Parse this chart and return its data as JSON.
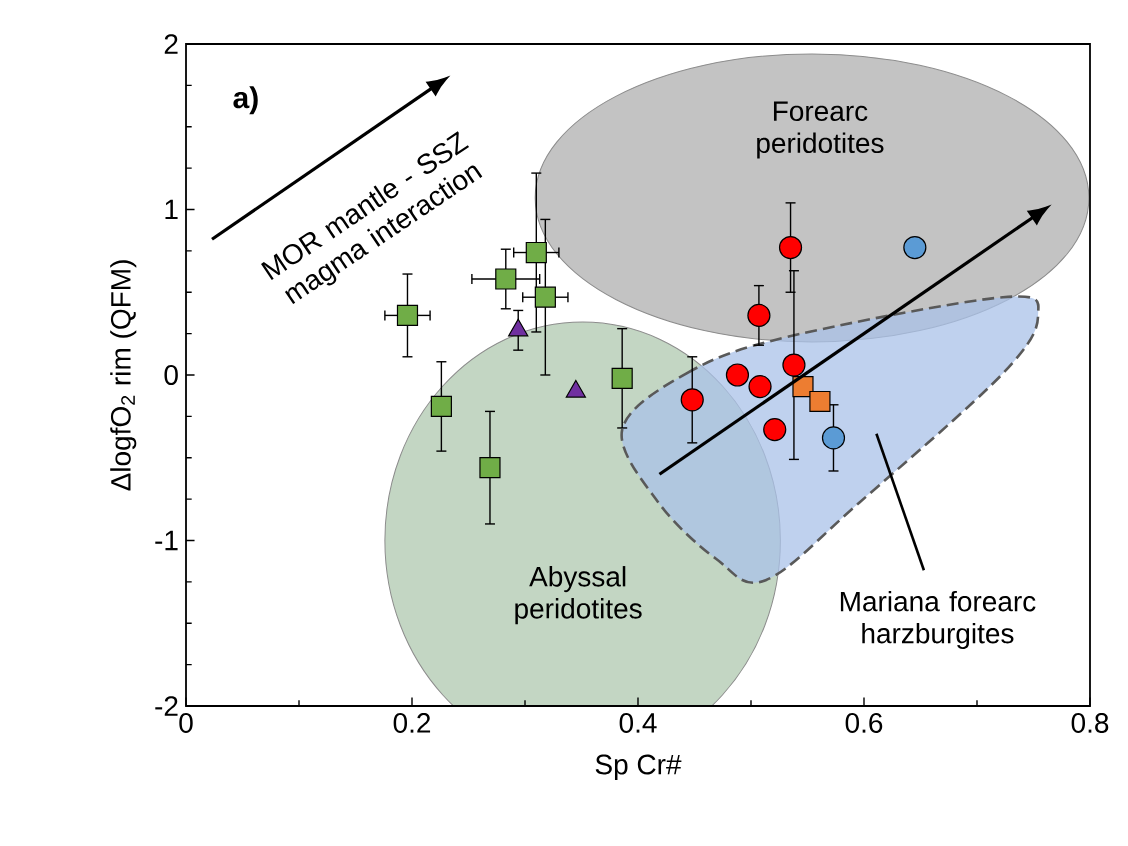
{
  "chart_data": {
    "type": "scatter",
    "xlabel": "Sp Cr#",
    "ylabel": "ΔlogfO$_{2}$ rim (QFM)",
    "xlim": [
      0,
      0.8
    ],
    "ylim": [
      -2,
      2
    ],
    "xticks": [
      0,
      0.2,
      0.4,
      0.6,
      0.8
    ],
    "yticks": [
      -2,
      -1,
      0,
      1,
      2
    ],
    "grid": false,
    "annotations": [
      "a)",
      "MOR mantle - SSZ magma interaction",
      "Forearc peridotites",
      "Abyssal peridotites",
      "Mariana forearc harzburgites"
    ],
    "series": [
      {
        "color": "#70ad47",
        "marker": "square",
        "x": [
          0.196,
          0.226,
          0.269,
          0.283,
          0.31,
          0.318,
          0.386
        ],
        "values": [
          0.36,
          -0.19,
          -0.56,
          0.58,
          0.74,
          0.47,
          -0.02
        ],
        "errors": [
          0.25,
          0.27,
          0.34,
          0.18,
          0.48,
          0.47,
          0.3
        ],
        "xerrors": [
          0.02,
          null,
          null,
          0.03,
          0.02,
          0.02,
          null
        ]
      },
      {
        "color": "#7030a0",
        "marker": "triangle",
        "x": [
          0.294,
          0.345
        ],
        "values": [
          0.27,
          -0.1
        ],
        "errors": [
          0.12,
          null
        ]
      },
      {
        "color": "#ff0000",
        "marker": "circle",
        "x": [
          0.448,
          0.488,
          0.507,
          0.508,
          0.521,
          0.535,
          0.538
        ],
        "values": [
          -0.15,
          0.0,
          0.36,
          -0.07,
          -0.33,
          0.77,
          0.06
        ],
        "errors": [
          0.26,
          null,
          0.18,
          null,
          null,
          0.27,
          0.57
        ]
      },
      {
        "color": "#ed7d31",
        "marker": "square",
        "x": [
          0.546,
          0.561
        ],
        "values": [
          -0.07,
          -0.16
        ]
      },
      {
        "color": "#5b9bd5",
        "marker": "circle",
        "x": [
          0.573,
          0.645
        ],
        "values": [
          -0.38,
          0.77
        ],
        "errors": [
          0.2,
          null
        ]
      }
    ]
  }
}
